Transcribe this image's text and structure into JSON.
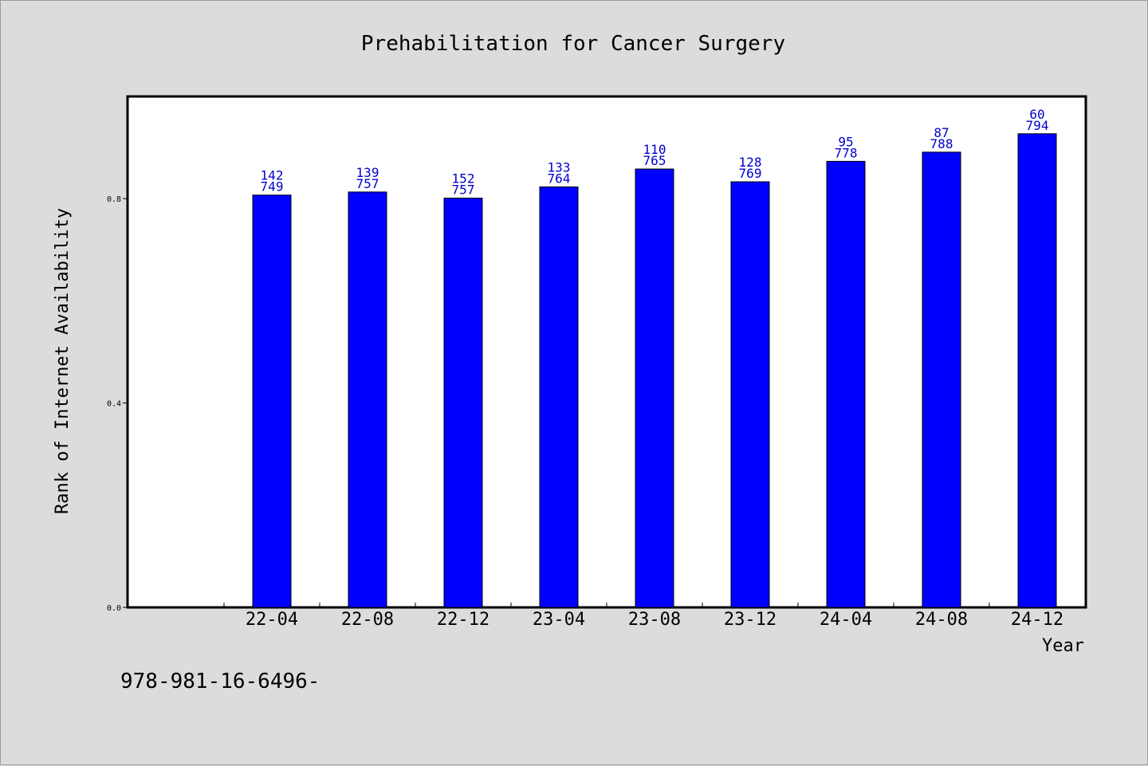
{
  "chart_data": {
    "type": "bar",
    "title": "Prehabilitation for Cancer Surgery",
    "xlabel": "Year",
    "ylabel": "Rank of Internet Availability",
    "ylim": [
      0.0,
      1.0
    ],
    "yticks": [
      "0.0",
      "0.4",
      "0.8"
    ],
    "ytick_values": [
      0.0,
      0.4,
      0.8
    ],
    "categories": [
      "22-04",
      "22-08",
      "22-12",
      "23-04",
      "23-08",
      "23-12",
      "24-04",
      "24-08",
      "24-12"
    ],
    "values": [
      0.807,
      0.813,
      0.801,
      0.823,
      0.858,
      0.833,
      0.873,
      0.891,
      0.927
    ],
    "labels_top": [
      "142",
      "139",
      "152",
      "133",
      "110",
      "128",
      "95",
      "87",
      "60"
    ],
    "labels_bottom": [
      "749",
      "757",
      "757",
      "764",
      "765",
      "769",
      "778",
      "788",
      "794"
    ],
    "bar_color": "#0000ff",
    "label_color": "#0000cc",
    "grid": false,
    "legend": "none"
  },
  "footer": {
    "text": "978-981-16-6496-"
  }
}
